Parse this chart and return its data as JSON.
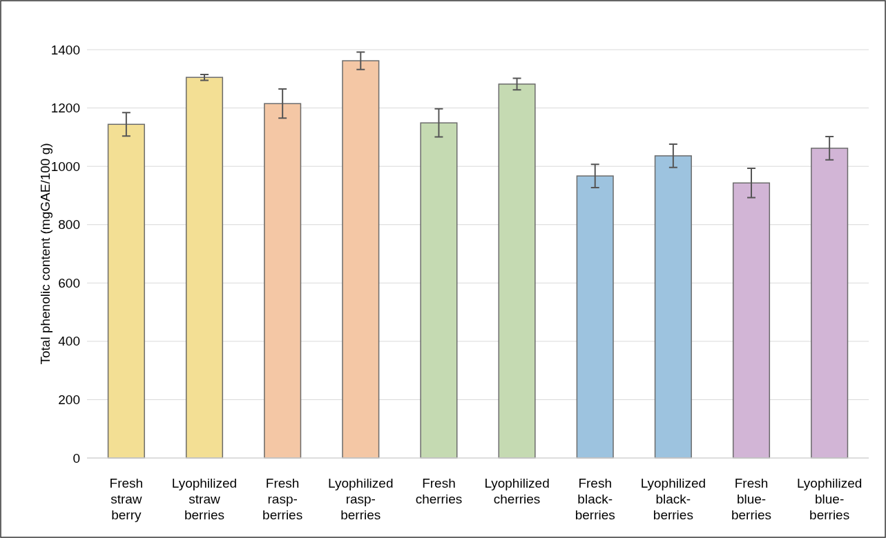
{
  "chart_data": {
    "type": "bar",
    "ylabel": "Total phenolic content (mgGAE/100 g)",
    "categories": [
      "Fresh\nstraw\nberry",
      "Lyophilized\nstraw\nberries",
      "Fresh\nrasp-\nberries",
      "Lyophilized\nrasp-\nberries",
      "Fresh\ncherries",
      "Lyophilized\ncherries",
      "Fresh\nblack-\nberries",
      "Lyophilized\nblack-\nberries",
      "Fresh\nblue-\nberries",
      "Lyophilized\nblue-\nberries"
    ],
    "values": [
      1144,
      1305,
      1215,
      1362,
      1149,
      1282,
      967,
      1036,
      943,
      1062
    ],
    "errors": [
      40,
      10,
      50,
      30,
      48,
      20,
      40,
      40,
      50,
      40
    ],
    "colors": [
      "#f3df94",
      "#f3df94",
      "#f4c7a5",
      "#f4c7a5",
      "#c5dab2",
      "#c5dab2",
      "#9dc3df",
      "#9dc3df",
      "#d2b5d6",
      "#d2b5d6"
    ],
    "ylim": [
      0,
      1400
    ],
    "yticks": [
      0,
      200,
      400,
      600,
      800,
      1000,
      1200,
      1400
    ],
    "grid": "y"
  }
}
